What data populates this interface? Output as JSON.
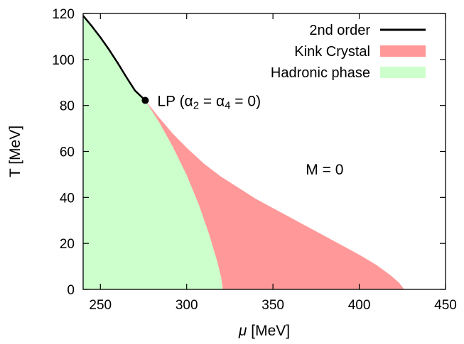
{
  "chart_data": {
    "type": "area",
    "xlabel": "μ [MeV]",
    "ylabel": "T [MeV]",
    "xlim": [
      240,
      450
    ],
    "ylim": [
      0,
      120
    ],
    "x_ticks": [
      250,
      300,
      350,
      400,
      450
    ],
    "y_ticks": [
      0,
      20,
      40,
      60,
      80,
      100,
      120
    ],
    "grid": false,
    "legend_position": "top-right",
    "legend": [
      {
        "label": "2nd order",
        "kind": "line",
        "color": "#000000"
      },
      {
        "label": "Kink Crystal",
        "kind": "fill",
        "color": "#ff9999"
      },
      {
        "label": "Hadronic phase",
        "kind": "fill",
        "color": "#ccffcc"
      }
    ],
    "series": [
      {
        "name": "2nd order",
        "kind": "line",
        "color": "#000000",
        "points": [
          [
            240,
            119
          ],
          [
            245,
            114.5
          ],
          [
            250,
            109.6
          ],
          [
            255,
            104.3
          ],
          [
            260,
            98.5
          ],
          [
            265,
            92.4
          ],
          [
            270,
            86.5
          ],
          [
            276,
            82.2
          ]
        ]
      },
      {
        "name": "Hadronic phase",
        "kind": "region",
        "color": "#ccffcc",
        "boundary": [
          [
            240,
            119
          ],
          [
            245,
            114.5
          ],
          [
            250,
            109.6
          ],
          [
            255,
            104.3
          ],
          [
            260,
            98.5
          ],
          [
            265,
            92.4
          ],
          [
            270,
            86.5
          ],
          [
            276,
            82.2
          ],
          [
            284,
            72.7
          ],
          [
            292,
            62
          ],
          [
            300,
            49.7
          ],
          [
            307,
            37
          ],
          [
            313,
            24
          ],
          [
            318,
            11.4
          ],
          [
            320,
            5
          ],
          [
            321,
            0
          ]
        ]
      },
      {
        "name": "Kink Crystal",
        "kind": "region",
        "color": "#ff9999",
        "upper": [
          [
            276,
            82.2
          ],
          [
            284,
            74.7
          ],
          [
            292,
            67.7
          ],
          [
            300,
            61.6
          ],
          [
            310,
            54.7
          ],
          [
            320,
            49
          ],
          [
            340,
            39.4
          ],
          [
            360,
            31.3
          ],
          [
            380,
            23.2
          ],
          [
            400,
            15.1
          ],
          [
            410,
            10.6
          ],
          [
            418,
            6.2
          ],
          [
            423,
            3
          ],
          [
            426,
            0
          ]
        ],
        "lower": [
          [
            321,
            0
          ],
          [
            320,
            5
          ],
          [
            318,
            11.4
          ],
          [
            313,
            24
          ],
          [
            307,
            37
          ],
          [
            300,
            49.7
          ],
          [
            292,
            62
          ],
          [
            284,
            72.7
          ],
          [
            276,
            82.2
          ]
        ]
      }
    ],
    "markers": [
      {
        "x": 276,
        "y": 82.2,
        "label": "LP (α",
        "subscript_a": "2",
        "label_mid": " = α",
        "subscript_b": "4",
        "label_end": " = 0)"
      }
    ],
    "annotations": [
      {
        "text": "M = 0",
        "x": 369,
        "y": 50
      }
    ]
  }
}
